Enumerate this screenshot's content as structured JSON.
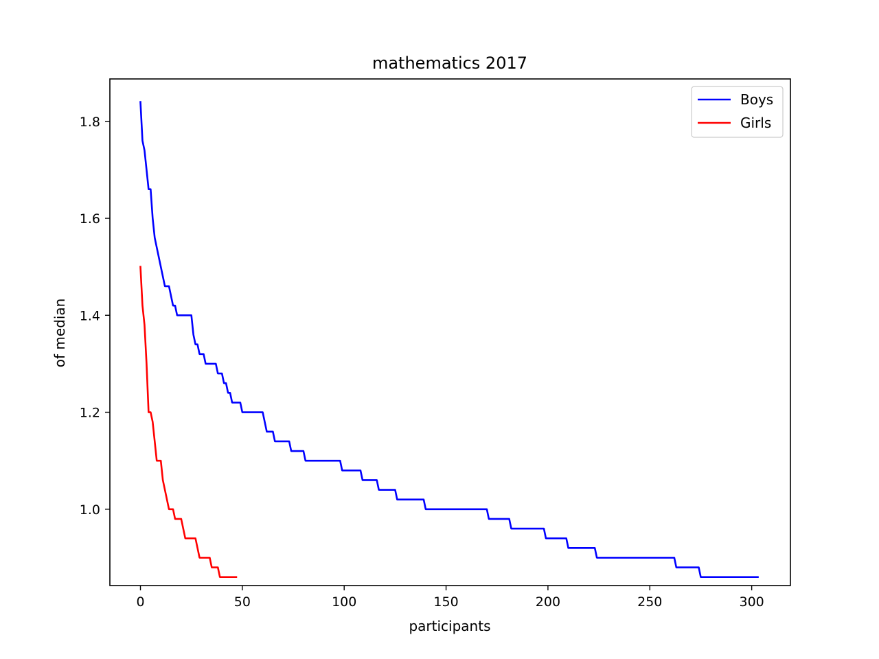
{
  "chart_data": {
    "type": "line",
    "title": "mathematics 2017",
    "xlabel": "participants",
    "ylabel": "of median",
    "xlim": [
      -15,
      319
    ],
    "ylim": [
      0.8425,
      1.8875
    ],
    "xticks": [
      0,
      50,
      100,
      150,
      200,
      250,
      300
    ],
    "yticks": [
      1.0,
      1.2,
      1.4,
      1.6,
      1.8
    ],
    "xtick_labels": [
      "0",
      "50",
      "100",
      "150",
      "200",
      "250",
      "300"
    ],
    "ytick_labels": [
      "1.0",
      "1.2",
      "1.4",
      "1.6",
      "1.8"
    ],
    "grid": false,
    "legend": "upper right",
    "series": [
      {
        "name": "Boys",
        "color": "#0000ff",
        "points": [
          [
            0,
            1.84
          ],
          [
            1,
            1.76
          ],
          [
            2,
            1.74
          ],
          [
            3,
            1.7
          ],
          [
            4,
            1.66
          ],
          [
            5,
            1.66
          ],
          [
            6,
            1.6
          ],
          [
            7,
            1.56
          ],
          [
            8,
            1.54
          ],
          [
            9,
            1.52
          ],
          [
            10,
            1.5
          ],
          [
            11,
            1.48
          ],
          [
            12,
            1.46
          ],
          [
            14,
            1.46
          ],
          [
            15,
            1.44
          ],
          [
            16,
            1.42
          ],
          [
            17,
            1.42
          ],
          [
            18,
            1.4
          ],
          [
            25,
            1.4
          ],
          [
            26,
            1.36
          ],
          [
            27,
            1.34
          ],
          [
            28,
            1.34
          ],
          [
            29,
            1.32
          ],
          [
            31,
            1.32
          ],
          [
            32,
            1.3
          ],
          [
            37,
            1.3
          ],
          [
            38,
            1.28
          ],
          [
            40,
            1.28
          ],
          [
            41,
            1.26
          ],
          [
            42,
            1.26
          ],
          [
            43,
            1.24
          ],
          [
            44,
            1.24
          ],
          [
            45,
            1.22
          ],
          [
            49,
            1.22
          ],
          [
            50,
            1.2
          ],
          [
            60,
            1.2
          ],
          [
            62,
            1.16
          ],
          [
            65,
            1.16
          ],
          [
            66,
            1.14
          ],
          [
            73,
            1.14
          ],
          [
            74,
            1.12
          ],
          [
            80,
            1.12
          ],
          [
            81,
            1.1
          ],
          [
            98,
            1.1
          ],
          [
            99,
            1.08
          ],
          [
            108,
            1.08
          ],
          [
            109,
            1.06
          ],
          [
            116,
            1.06
          ],
          [
            117,
            1.04
          ],
          [
            125,
            1.04
          ],
          [
            126,
            1.02
          ],
          [
            139,
            1.02
          ],
          [
            140,
            1.0
          ],
          [
            170,
            1.0
          ],
          [
            171,
            0.98
          ],
          [
            181,
            0.98
          ],
          [
            182,
            0.96
          ],
          [
            198,
            0.96
          ],
          [
            199,
            0.94
          ],
          [
            209,
            0.94
          ],
          [
            210,
            0.92
          ],
          [
            223,
            0.92
          ],
          [
            224,
            0.9
          ],
          [
            262,
            0.9
          ],
          [
            263,
            0.88
          ],
          [
            274,
            0.88
          ],
          [
            275,
            0.86
          ],
          [
            303,
            0.86
          ]
        ]
      },
      {
        "name": "Girls",
        "color": "#ff0000",
        "points": [
          [
            0,
            1.5
          ],
          [
            1,
            1.42
          ],
          [
            2,
            1.38
          ],
          [
            3,
            1.3
          ],
          [
            4,
            1.2
          ],
          [
            5,
            1.2
          ],
          [
            6,
            1.18
          ],
          [
            7,
            1.14
          ],
          [
            8,
            1.1
          ],
          [
            10,
            1.1
          ],
          [
            11,
            1.06
          ],
          [
            12,
            1.04
          ],
          [
            13,
            1.02
          ],
          [
            14,
            1.0
          ],
          [
            16,
            1.0
          ],
          [
            17,
            0.98
          ],
          [
            20,
            0.98
          ],
          [
            21,
            0.96
          ],
          [
            22,
            0.94
          ],
          [
            27,
            0.94
          ],
          [
            29,
            0.9
          ],
          [
            34,
            0.9
          ],
          [
            35,
            0.88
          ],
          [
            38,
            0.88
          ],
          [
            39,
            0.86
          ],
          [
            47,
            0.86
          ]
        ]
      }
    ]
  }
}
